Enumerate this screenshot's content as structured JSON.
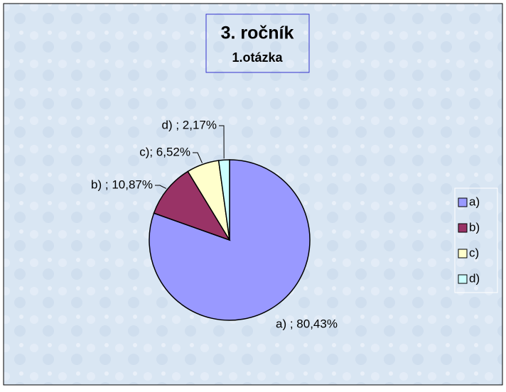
{
  "chart_data": {
    "type": "pie",
    "title": "3. ročník",
    "subtitle": "1.otázka",
    "categories": [
      "a)",
      "b)",
      "c)",
      "d)"
    ],
    "values": [
      80.43,
      10.87,
      6.52,
      2.17
    ],
    "value_labels": [
      "a) ; 80,43%",
      "b) ; 10,87%",
      "c); 6,52%",
      "d) ; 2,17%"
    ],
    "colors": [
      "#9999ff",
      "#993366",
      "#ffffcc",
      "#ccffff"
    ],
    "legend": "right"
  }
}
